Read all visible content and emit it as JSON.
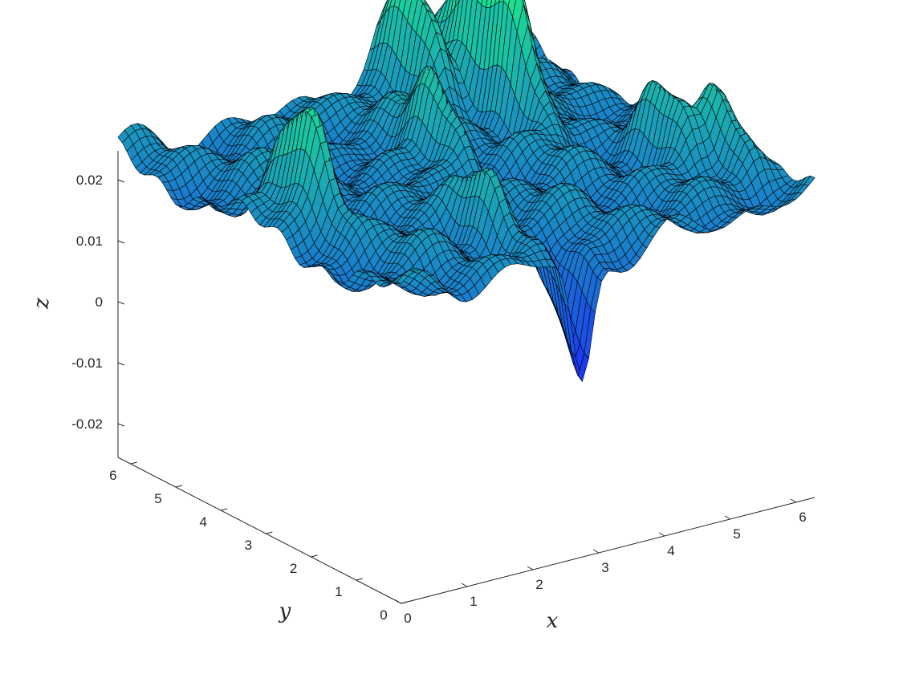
{
  "chart_data": {
    "type": "surface",
    "title": "",
    "xlabel": "x",
    "ylabel": "y",
    "zlabel": "z",
    "xlim": [
      0,
      6.2832
    ],
    "ylim": [
      0,
      6.2832
    ],
    "zlim": [
      -0.025,
      0.025
    ],
    "x_ticks": [
      "0",
      "1",
      "2",
      "3",
      "4",
      "5",
      "6"
    ],
    "y_ticks": [
      "0",
      "1",
      "2",
      "3",
      "4",
      "5",
      "6"
    ],
    "z_ticks": [
      {
        "value": -0.02,
        "label": "-0.02"
      },
      {
        "value": -0.01,
        "label": "-0.01"
      },
      {
        "value": 0,
        "label": "0"
      },
      {
        "value": 0.01,
        "label": "0.01"
      },
      {
        "value": 0.02,
        "label": "0.02"
      }
    ],
    "z_range_shown": [
      -0.0235,
      0.0242
    ],
    "grid": false,
    "colormap": "winter-like (blue to green)",
    "colormap_low": "#1a26ff",
    "colormap_high": "#1aeb8c",
    "edge_color": "#000000",
    "surface_features": [
      {
        "x": 4.71,
        "y": 5.2,
        "z": 0.0242,
        "label": "tallest peak"
      },
      {
        "x": 4.6,
        "y": 4.2,
        "z": 0.023
      },
      {
        "x": 0.66,
        "y": 3.13,
        "z": 0.022
      },
      {
        "x": 4.04,
        "y": 5.5,
        "z": 0.017
      },
      {
        "x": 3.14,
        "y": 3.77,
        "z": 0.017
      },
      {
        "x": 5.5,
        "y": 2.2,
        "z": 0.013
      },
      {
        "x": 2.2,
        "y": 1.4,
        "z": 0.012
      },
      {
        "x": 5.93,
        "y": 1.57,
        "z": 0.012
      },
      {
        "x": 2.75,
        "y": 0.06,
        "z": -0.0235,
        "label": "deepest trough"
      }
    ]
  }
}
